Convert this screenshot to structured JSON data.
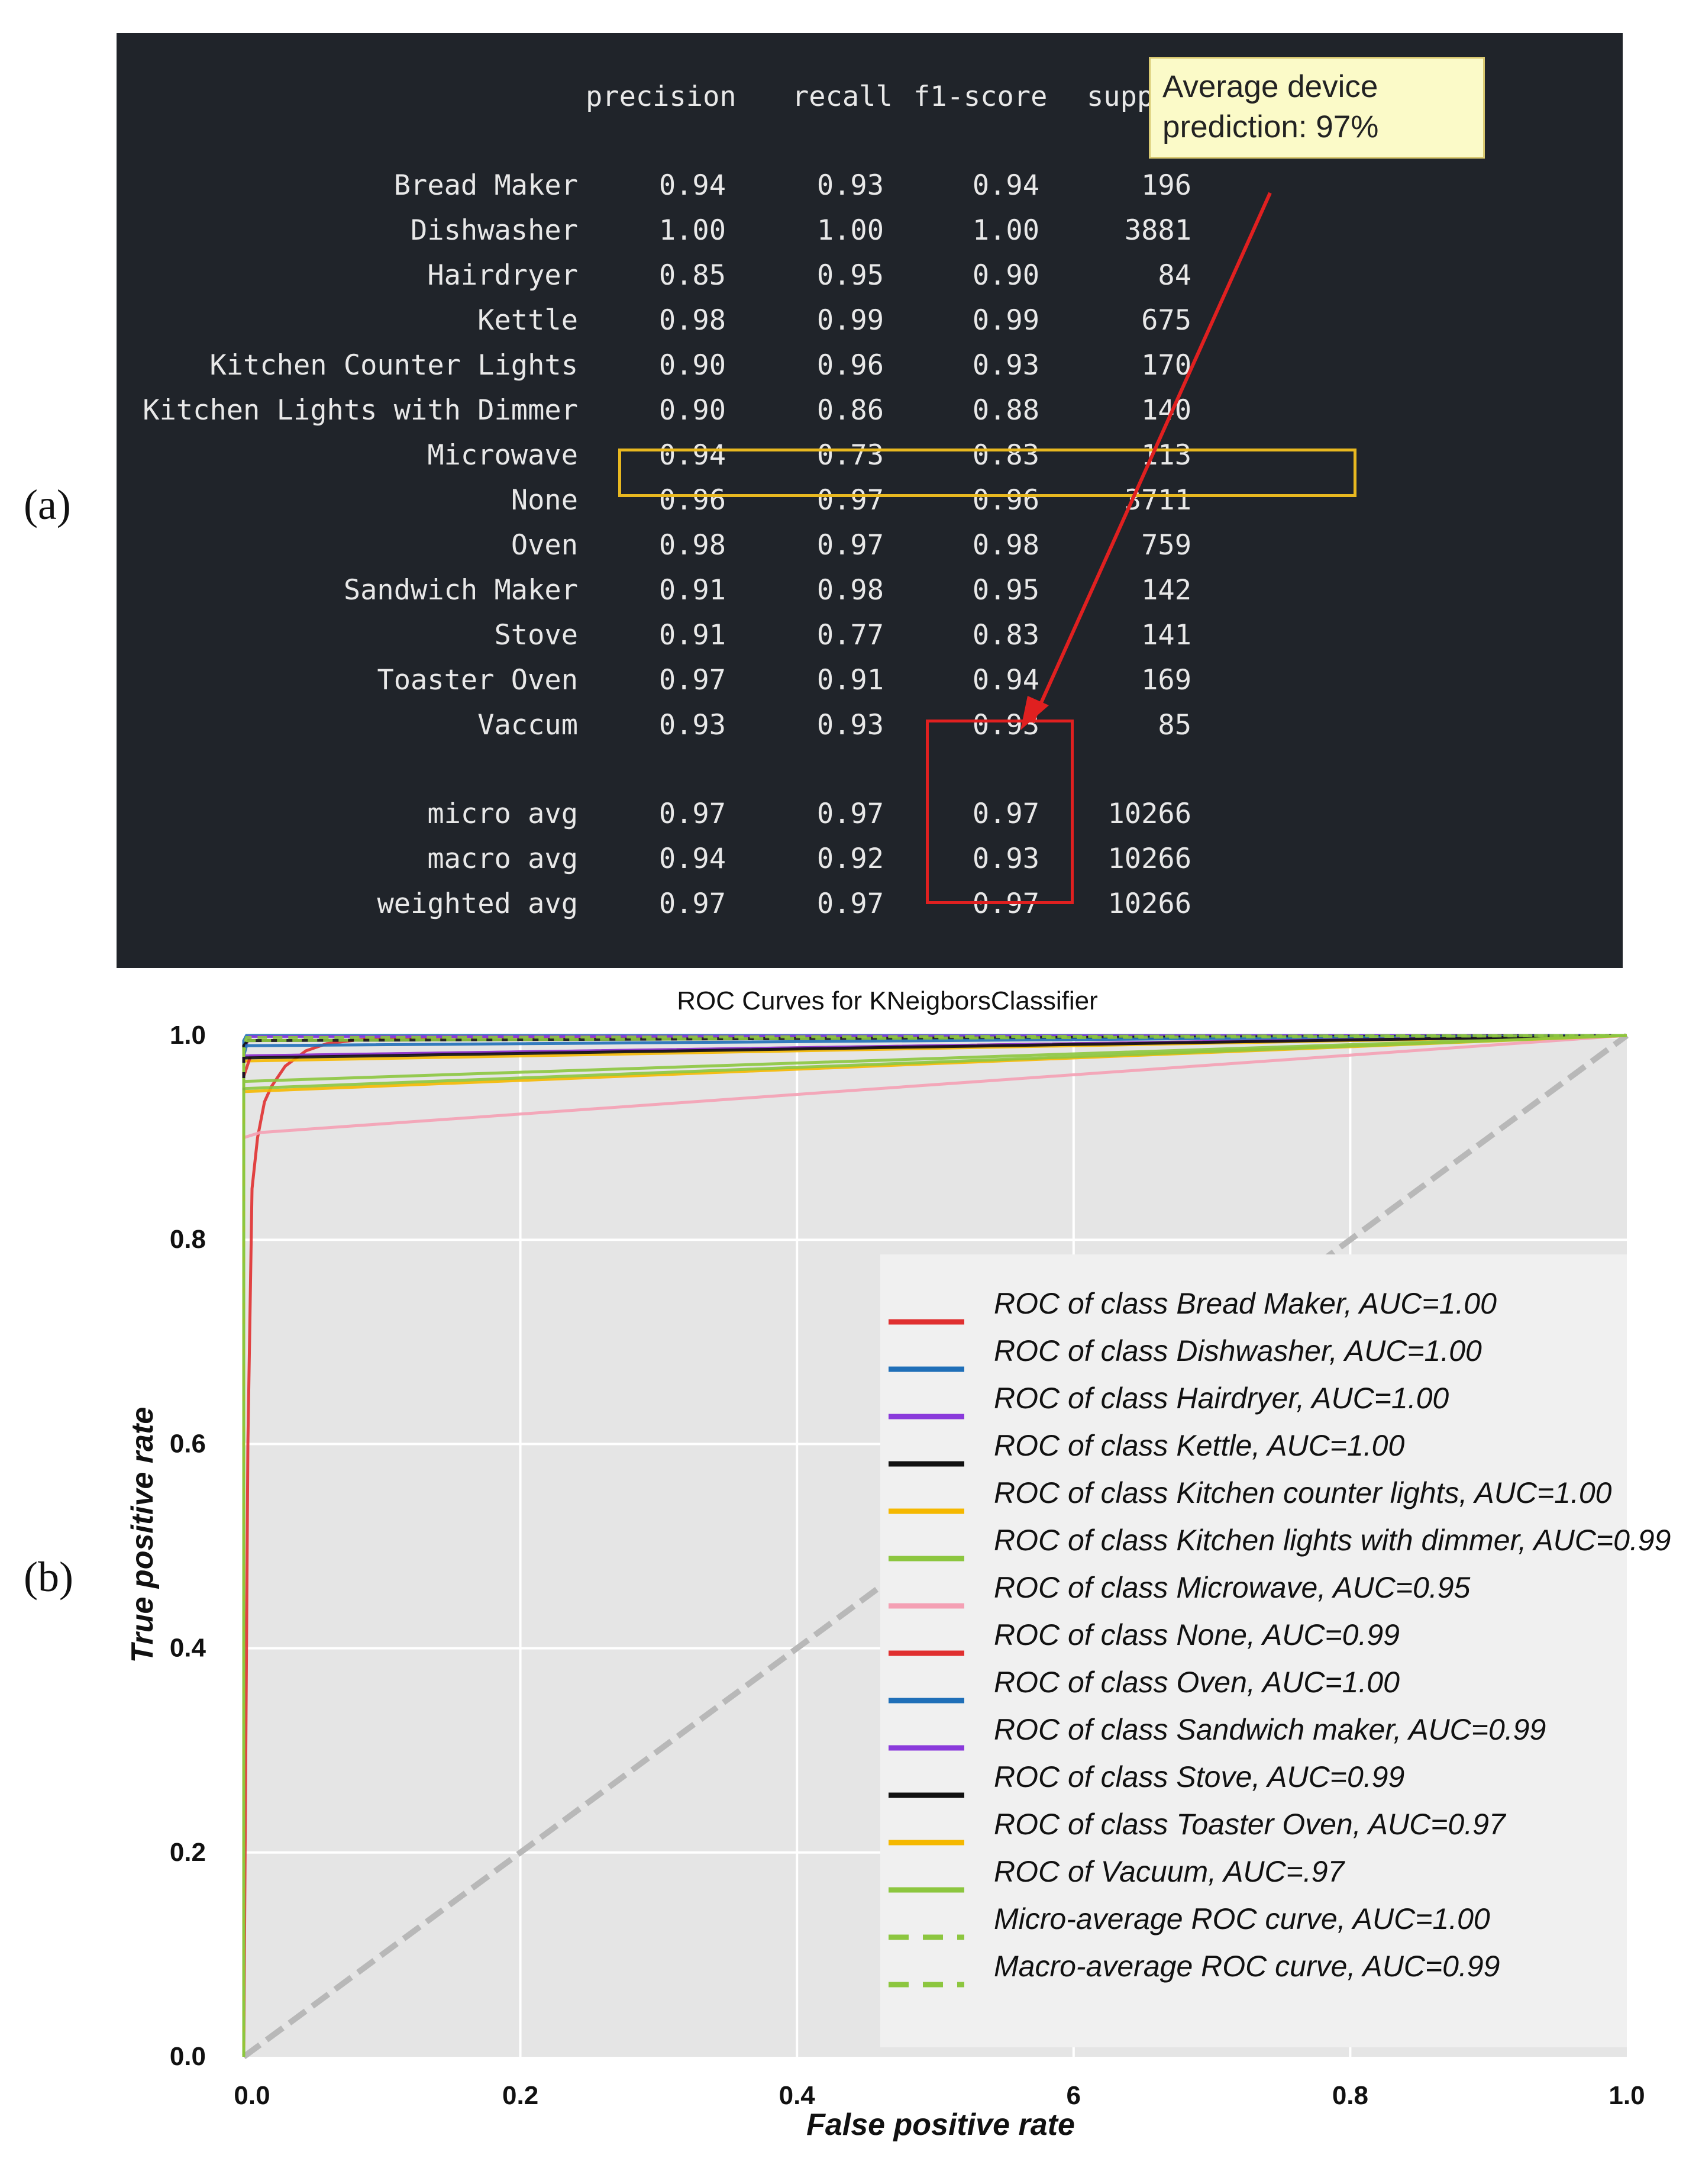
{
  "panel_labels": [
    "(a)",
    "(b)"
  ],
  "report": {
    "headers": [
      "precision",
      "recall",
      "f1-score",
      "support"
    ],
    "rows": [
      {
        "label": "Bread Maker",
        "precision": "0.94",
        "recall": "0.93",
        "f1": "0.94",
        "support": "196"
      },
      {
        "label": "Dishwasher",
        "precision": "1.00",
        "recall": "1.00",
        "f1": "1.00",
        "support": "3881"
      },
      {
        "label": "Hairdryer",
        "precision": "0.85",
        "recall": "0.95",
        "f1": "0.90",
        "support": "84"
      },
      {
        "label": "Kettle",
        "precision": "0.98",
        "recall": "0.99",
        "f1": "0.99",
        "support": "675"
      },
      {
        "label": "Kitchen Counter Lights",
        "precision": "0.90",
        "recall": "0.96",
        "f1": "0.93",
        "support": "170"
      },
      {
        "label": "Kitchen Lights with Dimmer",
        "precision": "0.90",
        "recall": "0.86",
        "f1": "0.88",
        "support": "140"
      },
      {
        "label": "Microwave",
        "precision": "0.94",
        "recall": "0.73",
        "f1": "0.83",
        "support": "113"
      },
      {
        "label": "None",
        "precision": "0.96",
        "recall": "0.97",
        "f1": "0.96",
        "support": "3711"
      },
      {
        "label": "Oven",
        "precision": "0.98",
        "recall": "0.97",
        "f1": "0.98",
        "support": "759"
      },
      {
        "label": "Sandwich Maker",
        "precision": "0.91",
        "recall": "0.98",
        "f1": "0.95",
        "support": "142"
      },
      {
        "label": "Stove",
        "precision": "0.91",
        "recall": "0.77",
        "f1": "0.83",
        "support": "141"
      },
      {
        "label": "Toaster Oven",
        "precision": "0.97",
        "recall": "0.91",
        "f1": "0.94",
        "support": "169"
      },
      {
        "label": "Vaccum",
        "precision": "0.93",
        "recall": "0.93",
        "f1": "0.93",
        "support": "85"
      }
    ],
    "averages": [
      {
        "label": "micro avg",
        "precision": "0.97",
        "recall": "0.97",
        "f1": "0.97",
        "support": "10266"
      },
      {
        "label": "macro avg",
        "precision": "0.94",
        "recall": "0.92",
        "f1": "0.93",
        "support": "10266"
      },
      {
        "label": "weighted avg",
        "precision": "0.97",
        "recall": "0.97",
        "f1": "0.97",
        "support": "10266"
      }
    ],
    "note": "Average device prediction: 97%",
    "highlight_color": "#e8b820",
    "avg_box_color": "#e02020"
  },
  "chart_data": {
    "type": "line",
    "title": "ROC Curves for KNeigborsClassifier",
    "xlabel": "False positive rate",
    "ylabel": "True positive rate",
    "xlim": [
      0,
      1
    ],
    "ylim": [
      0,
      1
    ],
    "xticks": [
      "0.0",
      "0.2",
      "0.4",
      "6",
      "0.8",
      "1.0"
    ],
    "yticks": [
      "0.0",
      "0.2",
      "0.4",
      "0.6",
      "0.8",
      "1.0"
    ],
    "grid": true,
    "legend_position": "lower-right",
    "series": [
      {
        "name": "ROC of class Bread Maker, AUC=1.00",
        "color": "#e03030",
        "dash": false,
        "x": [
          0,
          0.003,
          0.006,
          0.01,
          0.015,
          0.02,
          0.03,
          0.045,
          0.06,
          0.09,
          0.15,
          1.0
        ],
        "y": [
          0,
          0.6,
          0.85,
          0.9,
          0.935,
          0.95,
          0.97,
          0.985,
          0.992,
          0.997,
          0.999,
          1.0
        ]
      },
      {
        "name": "ROC of class Dishwasher, AUC=1.00",
        "color": "#1f6fb8",
        "dash": false,
        "x": [
          0,
          0.0,
          0.002,
          1.0
        ],
        "y": [
          0,
          0.995,
          1.0,
          1.0
        ]
      },
      {
        "name": "ROC of class Hairdryer, AUC=1.00",
        "color": "#8a3adb",
        "dash": false,
        "x": [
          0,
          0.0,
          0.004,
          1.0
        ],
        "y": [
          0,
          0.985,
          0.999,
          1.0
        ]
      },
      {
        "name": "ROC of class Kettle, AUC=1.00",
        "color": "#111111",
        "dash": false,
        "x": [
          0,
          0.0,
          0.003,
          1.0
        ],
        "y": [
          0,
          0.99,
          0.995,
          1.0
        ]
      },
      {
        "name": "ROC of class Kitchen counter lights, AUC=1.00",
        "color": "#f5b800",
        "dash": false,
        "x": [
          0,
          0.0,
          1.0
        ],
        "y": [
          0,
          0.975,
          1.0
        ]
      },
      {
        "name": "ROC of class Kitchen lights with dimmer, AUC=0.99",
        "color": "#8cc63f",
        "dash": false,
        "x": [
          0,
          0.0,
          1.0
        ],
        "y": [
          0,
          0.955,
          1.0
        ]
      },
      {
        "name": "ROC of class Microwave, AUC=0.95",
        "color": "#f4a0b4",
        "dash": false,
        "x": [
          0,
          0.0,
          0.012,
          1.0
        ],
        "y": [
          0,
          0.9,
          0.905,
          1.0
        ]
      },
      {
        "name": "ROC of class None, AUC=0.99",
        "color": "#e03030",
        "dash": false,
        "x": [
          0,
          0.0,
          0.005,
          1.0
        ],
        "y": [
          0,
          0.96,
          0.98,
          1.0
        ]
      },
      {
        "name": "ROC of class Oven, AUC=1.00",
        "color": "#1f6fb8",
        "dash": false,
        "x": [
          0,
          0.0,
          0.002,
          1.0
        ],
        "y": [
          0,
          0.98,
          0.99,
          1.0
        ]
      },
      {
        "name": "ROC of class Sandwich maker, AUC=0.99",
        "color": "#8a3adb",
        "dash": false,
        "x": [
          0,
          0.0,
          1.0
        ],
        "y": [
          0,
          0.98,
          1.0
        ]
      },
      {
        "name": "ROC of class Stove, AUC=0.99",
        "color": "#111111",
        "dash": false,
        "x": [
          0,
          0.0,
          1.0
        ],
        "y": [
          0,
          0.978,
          1.0
        ]
      },
      {
        "name": "ROC of class Toaster Oven, AUC=0.97",
        "color": "#f5b800",
        "dash": false,
        "x": [
          0,
          0.0,
          1.0
        ],
        "y": [
          0,
          0.945,
          1.0
        ]
      },
      {
        "name": "ROC of Vacuum, AUC=.97",
        "color": "#8cc63f",
        "dash": false,
        "x": [
          0,
          0.0,
          1.0
        ],
        "y": [
          0,
          0.948,
          1.0
        ]
      },
      {
        "name": "Micro-average ROC curve, AUC=1.00",
        "color": "#8cc63f",
        "dash": true,
        "x": [
          0,
          0.0,
          0.002,
          1.0
        ],
        "y": [
          0,
          0.99,
          0.998,
          1.0
        ]
      },
      {
        "name": "Macro-average ROC curve, AUC=0.99",
        "color": "#8cc63f",
        "dash": true,
        "x": [
          0,
          0.0,
          0.003,
          1.0
        ],
        "y": [
          0,
          0.985,
          0.995,
          1.0
        ]
      }
    ],
    "chance_line": {
      "x": [
        0,
        1
      ],
      "y": [
        0,
        1
      ],
      "color": "#b8b8b8"
    }
  }
}
